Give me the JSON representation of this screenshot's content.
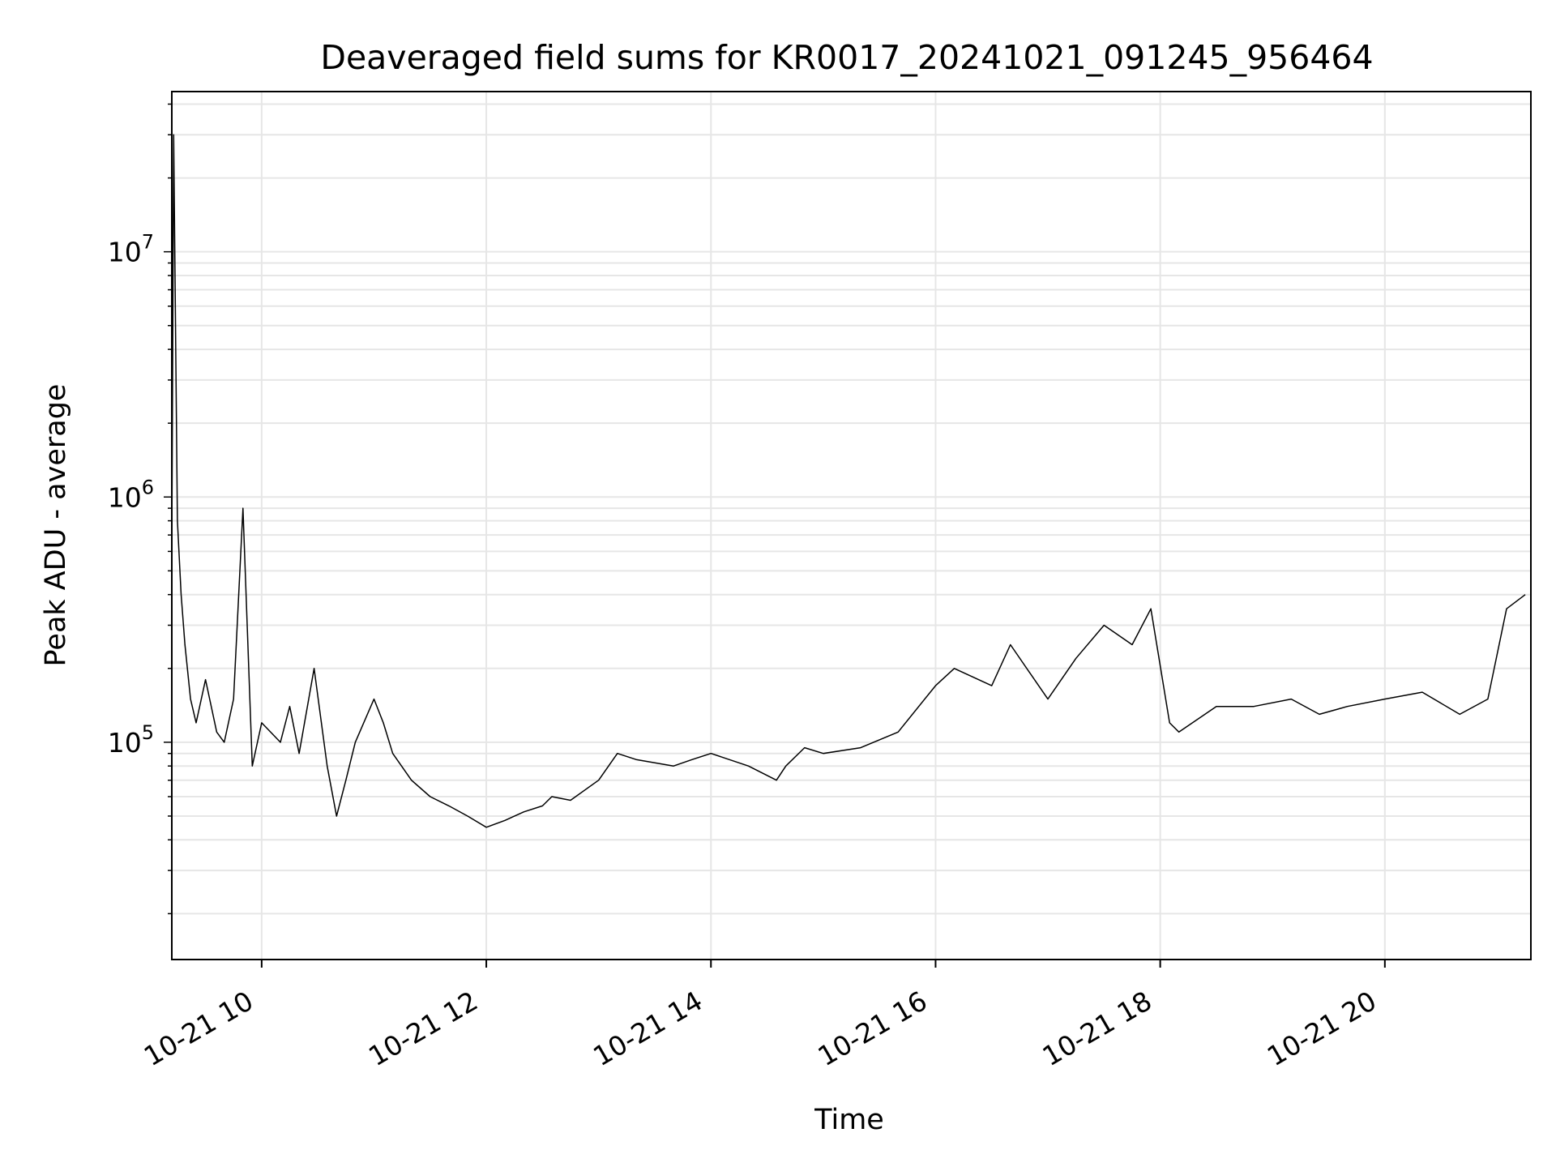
{
  "chart_data": {
    "type": "line",
    "title": "Deaveraged field sums for KR0017_20241021_091245_956464",
    "xlabel": "Time",
    "ylabel": "Peak ADU - average",
    "x_scale": "time",
    "y_scale": "log",
    "xlim": [
      "2024-10-21 09:12",
      "2024-10-21 21:18"
    ],
    "ylim": [
      13000,
      45000000
    ],
    "x_ticks": [
      {
        "value": "2024-10-21 10:00",
        "label": "10-21 10"
      },
      {
        "value": "2024-10-21 12:00",
        "label": "10-21 12"
      },
      {
        "value": "2024-10-21 14:00",
        "label": "10-21 14"
      },
      {
        "value": "2024-10-21 16:00",
        "label": "10-21 16"
      },
      {
        "value": "2024-10-21 18:00",
        "label": "10-21 18"
      },
      {
        "value": "2024-10-21 20:00",
        "label": "10-21 20"
      }
    ],
    "y_ticks": [
      {
        "value": 100000,
        "base": "10",
        "exp": "5"
      },
      {
        "value": 1000000,
        "base": "10",
        "exp": "6"
      },
      {
        "value": 10000000,
        "base": "10",
        "exp": "7"
      }
    ],
    "grid": true,
    "line_color": "#000000",
    "series": [
      {
        "x": [
          "2024-10-21 09:12",
          "2024-10-21 09:13",
          "2024-10-21 09:15",
          "2024-10-21 09:17",
          "2024-10-21 09:19",
          "2024-10-21 09:22",
          "2024-10-21 09:25",
          "2024-10-21 09:30",
          "2024-10-21 09:36",
          "2024-10-21 09:40",
          "2024-10-21 09:45",
          "2024-10-21 09:50",
          "2024-10-21 09:55",
          "2024-10-21 10:00",
          "2024-10-21 10:10",
          "2024-10-21 10:15",
          "2024-10-21 10:20",
          "2024-10-21 10:28",
          "2024-10-21 10:35",
          "2024-10-21 10:40",
          "2024-10-21 10:45",
          "2024-10-21 10:50",
          "2024-10-21 11:00",
          "2024-10-21 11:05",
          "2024-10-21 11:10",
          "2024-10-21 11:20",
          "2024-10-21 11:30",
          "2024-10-21 11:40",
          "2024-10-21 11:50",
          "2024-10-21 12:00",
          "2024-10-21 12:10",
          "2024-10-21 12:20",
          "2024-10-21 12:30",
          "2024-10-21 12:35",
          "2024-10-21 12:45",
          "2024-10-21 13:00",
          "2024-10-21 13:10",
          "2024-10-21 13:20",
          "2024-10-21 13:40",
          "2024-10-21 13:50",
          "2024-10-21 14:00",
          "2024-10-21 14:20",
          "2024-10-21 14:35",
          "2024-10-21 14:40",
          "2024-10-21 14:50",
          "2024-10-21 15:00",
          "2024-10-21 15:20",
          "2024-10-21 15:40",
          "2024-10-21 16:00",
          "2024-10-21 16:10",
          "2024-10-21 16:30",
          "2024-10-21 16:40",
          "2024-10-21 17:00",
          "2024-10-21 17:15",
          "2024-10-21 17:30",
          "2024-10-21 17:45",
          "2024-10-21 17:55",
          "2024-10-21 18:05",
          "2024-10-21 18:10",
          "2024-10-21 18:30",
          "2024-10-21 18:50",
          "2024-10-21 19:10",
          "2024-10-21 19:25",
          "2024-10-21 19:40",
          "2024-10-21 20:00",
          "2024-10-21 20:20",
          "2024-10-21 20:40",
          "2024-10-21 20:55",
          "2024-10-21 21:05",
          "2024-10-21 21:15"
        ],
        "y": [
          600000,
          30000000,
          800000,
          400000,
          250000,
          150000,
          120000,
          180000,
          110000,
          100000,
          150000,
          900000,
          80000,
          120000,
          100000,
          140000,
          90000,
          200000,
          80000,
          50000,
          70000,
          100000,
          150000,
          120000,
          90000,
          70000,
          60000,
          55000,
          50000,
          45000,
          48000,
          52000,
          55000,
          60000,
          58000,
          70000,
          90000,
          85000,
          80000,
          85000,
          90000,
          80000,
          70000,
          80000,
          95000,
          90000,
          95000,
          110000,
          170000,
          200000,
          170000,
          250000,
          150000,
          220000,
          300000,
          250000,
          350000,
          120000,
          110000,
          140000,
          140000,
          150000,
          130000,
          140000,
          150000,
          160000,
          130000,
          150000,
          350000,
          400000
        ]
      }
    ]
  }
}
